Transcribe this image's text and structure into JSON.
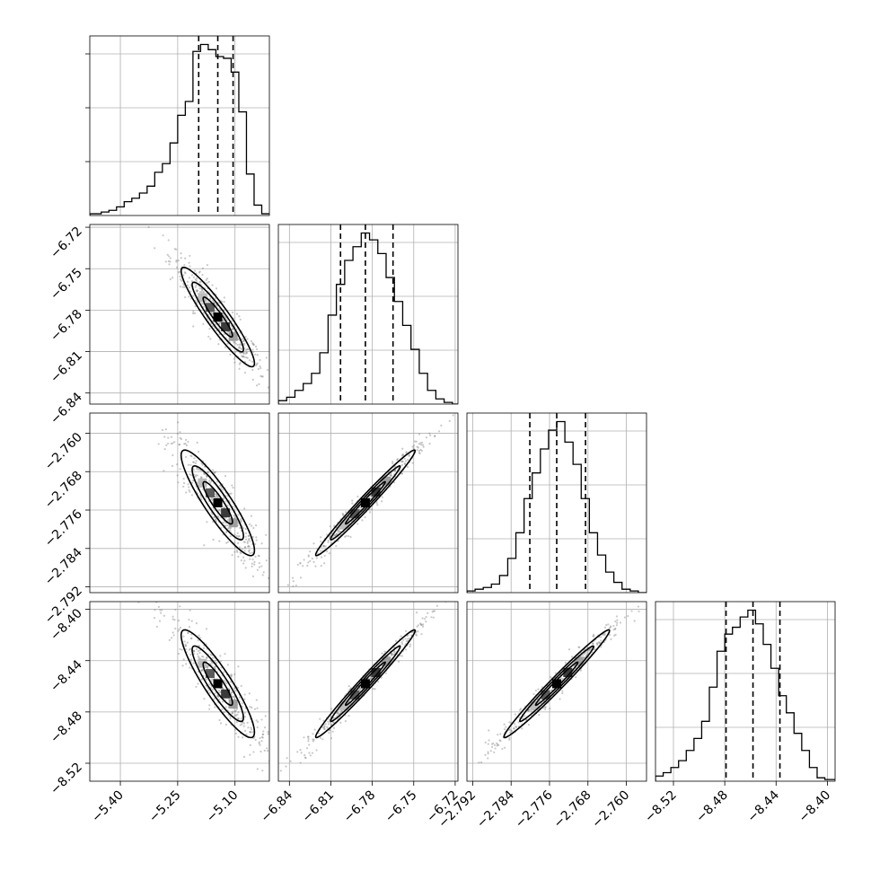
{
  "chart_data": {
    "type": "corner",
    "n_params": 4,
    "grid": true,
    "params": [
      {
        "range": [
          -5.48,
          -5.01
        ],
        "ticks": [
          -5.4,
          -5.25,
          -5.1
        ],
        "tick_labels": [
          "−5.40",
          "−5.25",
          "−5.10"
        ],
        "mean": -5.145,
        "sigma": 0.048,
        "quantiles": [
          -5.195,
          -5.145,
          -5.105
        ],
        "hist_edges": [
          -5.48,
          -5.45,
          -5.43,
          -5.41,
          -5.39,
          -5.37,
          -5.35,
          -5.33,
          -5.31,
          -5.29,
          -5.27,
          -5.25,
          -5.23,
          -5.21,
          -5.19,
          -5.17,
          -5.15,
          -5.13,
          -5.11,
          -5.09,
          -5.07,
          -5.05,
          -5.03,
          -5.01
        ],
        "hist_counts": [
          1,
          2,
          3,
          5,
          8,
          10,
          13,
          17,
          25,
          30,
          42,
          58,
          66,
          95,
          99,
          96,
          92,
          91,
          83,
          60,
          24,
          6,
          1
        ]
      },
      {
        "range": [
          -6.848,
          -6.718
        ],
        "ticks": [
          -6.84,
          -6.81,
          -6.78,
          -6.75,
          -6.72
        ],
        "tick_labels": [
          "−6.84",
          "−6.81",
          "−6.78",
          "−6.75",
          "−6.72"
        ],
        "mean": -6.785,
        "sigma": 0.018,
        "quantiles": [
          -6.803,
          -6.785,
          -6.765
        ],
        "hist_edges": [
          -6.848,
          -6.842,
          -6.836,
          -6.83,
          -6.824,
          -6.818,
          -6.812,
          -6.806,
          -6.8,
          -6.794,
          -6.788,
          -6.782,
          -6.776,
          -6.77,
          -6.764,
          -6.758,
          -6.752,
          -6.746,
          -6.74,
          -6.734,
          -6.728,
          -6.722,
          -6.718
        ],
        "hist_counts": [
          2,
          4,
          8,
          12,
          18,
          30,
          52,
          70,
          84,
          92,
          100,
          96,
          88,
          74,
          60,
          46,
          32,
          18,
          8,
          3,
          1,
          0
        ]
      },
      {
        "range": [
          -2.7932,
          -2.7558
        ],
        "ticks": [
          -2.792,
          -2.784,
          -2.776,
          -2.768,
          -2.76
        ],
        "tick_labels": [
          "−2.792",
          "−2.784",
          "−2.776",
          "−2.768",
          "−2.760"
        ],
        "mean": -2.7745,
        "sigma": 0.0055,
        "quantiles": [
          -2.7801,
          -2.7745,
          -2.7685
        ],
        "hist_edges": [
          -2.7932,
          -2.7915,
          -2.7898,
          -2.7881,
          -2.7864,
          -2.7847,
          -2.783,
          -2.7813,
          -2.7796,
          -2.7779,
          -2.7762,
          -2.7745,
          -2.7728,
          -2.7711,
          -2.7694,
          -2.7677,
          -2.766,
          -2.7643,
          -2.7626,
          -2.7609,
          -2.7592,
          -2.7575,
          -2.7558
        ],
        "hist_counts": [
          1,
          2,
          3,
          5,
          10,
          20,
          35,
          55,
          70,
          84,
          95,
          100,
          88,
          75,
          55,
          35,
          22,
          12,
          6,
          2,
          1,
          0
        ]
      },
      {
        "range": [
          -8.534,
          -8.394
        ],
        "ticks": [
          -8.52,
          -8.48,
          -8.44,
          -8.4
        ],
        "tick_labels": [
          "−8.52",
          "−8.48",
          "−8.44",
          "−8.40"
        ],
        "mean": -8.458,
        "sigma": 0.021,
        "quantiles": [
          -8.479,
          -8.458,
          -8.437
        ],
        "hist_edges": [
          -8.534,
          -8.528,
          -8.522,
          -8.516,
          -8.51,
          -8.504,
          -8.498,
          -8.492,
          -8.486,
          -8.48,
          -8.474,
          -8.468,
          -8.462,
          -8.456,
          -8.45,
          -8.444,
          -8.438,
          -8.432,
          -8.426,
          -8.42,
          -8.414,
          -8.408,
          -8.402,
          -8.394
        ],
        "hist_counts": [
          3,
          5,
          8,
          12,
          18,
          25,
          35,
          55,
          76,
          86,
          90,
          96,
          100,
          92,
          80,
          66,
          50,
          40,
          28,
          18,
          8,
          2,
          1
        ]
      }
    ],
    "correlations": [
      [
        1,
        -0.93,
        -0.9,
        -0.9
      ],
      [
        -0.93,
        1,
        0.985,
        0.985
      ],
      [
        -0.9,
        0.985,
        1,
        0.985
      ],
      [
        -0.9,
        0.985,
        0.985,
        1
      ]
    ]
  }
}
